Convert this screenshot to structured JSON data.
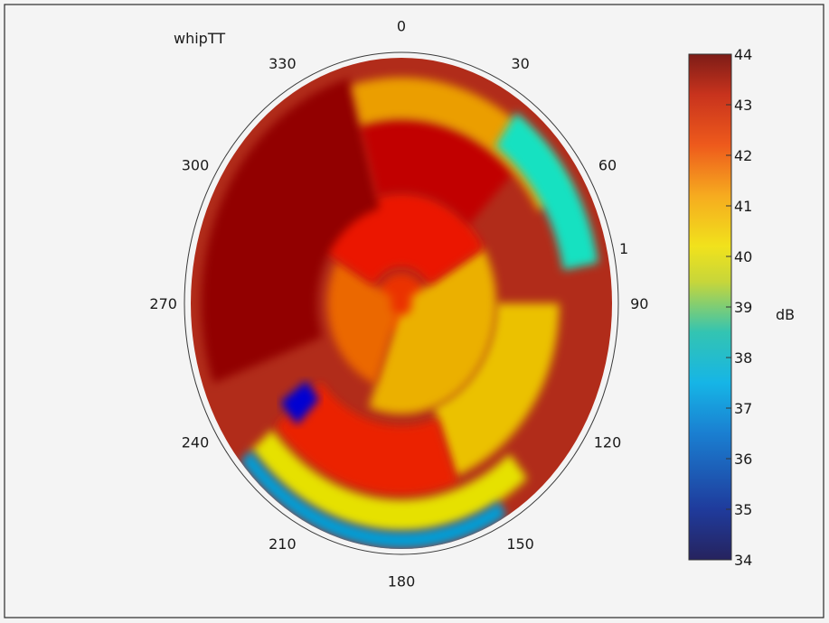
{
  "chart_data": {
    "type": "heatmap",
    "subtype": "polar",
    "title": "whipTT",
    "angular_ticks": [
      "0",
      "30",
      "60",
      "90",
      "120",
      "150",
      "180",
      "210",
      "240",
      "270",
      "300",
      "330"
    ],
    "radial_ticks": [
      "1"
    ],
    "angular_direction": "clockwise",
    "zero_at": "top",
    "colorbar": {
      "label": "dB",
      "min": 34,
      "max": 44,
      "ticks": [
        "34",
        "35",
        "36",
        "37",
        "38",
        "39",
        "40",
        "41",
        "42",
        "43",
        "44"
      ],
      "colormap": "jet"
    },
    "regions": [
      {
        "angle_from": 0,
        "angle_to": 360,
        "r_from": 0.0,
        "r_to": 0.12,
        "value": 42.2
      },
      {
        "angle_from": 60,
        "angle_to": 200,
        "r_from": 0.05,
        "r_to": 0.45,
        "value": 40.8
      },
      {
        "angle_from": 200,
        "angle_to": 300,
        "r_from": 0.05,
        "r_to": 0.35,
        "value": 41.6
      },
      {
        "angle_from": 300,
        "angle_to": 60,
        "r_from": 0.15,
        "r_to": 0.45,
        "value": 42.5
      },
      {
        "angle_from": 250,
        "angle_to": 345,
        "r_from": 0.4,
        "r_to": 0.95,
        "value": 43.7
      },
      {
        "angle_from": 345,
        "angle_to": 45,
        "r_from": 0.45,
        "r_to": 0.75,
        "value": 43.2
      },
      {
        "angle_from": 345,
        "angle_to": 60,
        "r_from": 0.75,
        "r_to": 0.92,
        "value": 41.0
      },
      {
        "angle_from": 35,
        "angle_to": 80,
        "r_from": 0.78,
        "r_to": 0.95,
        "value": 38.0
      },
      {
        "angle_from": 90,
        "angle_to": 160,
        "r_from": 0.45,
        "r_to": 0.75,
        "value": 40.6
      },
      {
        "angle_from": 160,
        "angle_to": 230,
        "r_from": 0.5,
        "r_to": 0.78,
        "value": 42.4
      },
      {
        "angle_from": 140,
        "angle_to": 230,
        "r_from": 0.8,
        "r_to": 0.93,
        "value": 40.2
      },
      {
        "angle_from": 150,
        "angle_to": 230,
        "r_from": 0.93,
        "r_to": 1.0,
        "value": 37.0
      },
      {
        "angle_from": 225,
        "angle_to": 235,
        "r_from": 0.55,
        "r_to": 0.7,
        "value": 35.2
      }
    ]
  }
}
